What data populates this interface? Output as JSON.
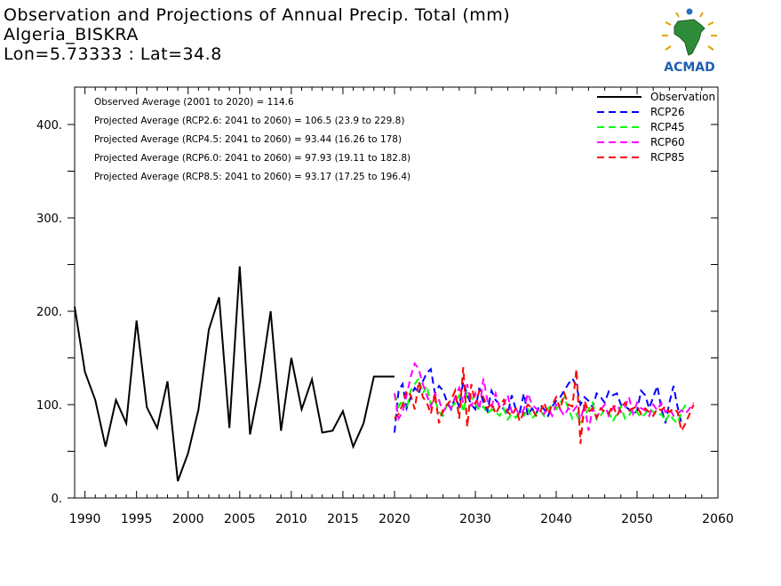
{
  "header": {
    "title_line1": "Observation and Projections of Annual Precip. Total (mm)",
    "title_line2": "Algeria_BISKRA",
    "title_line3": "Lon=5.73333 : Lat=34.8"
  },
  "logo": {
    "text": "ACMAD"
  },
  "chart_data": {
    "type": "line",
    "xlim": [
      1989,
      2060
    ],
    "ylim": [
      0,
      440
    ],
    "x_ticks": [
      1990,
      1995,
      2000,
      2005,
      2010,
      2015,
      2020,
      2030,
      2040,
      2050,
      2060
    ],
    "y_ticks": [
      0,
      100,
      200,
      300,
      400
    ],
    "y_tick_labels": [
      "0.",
      "100.",
      "200.",
      "300.",
      "400."
    ],
    "grid": false,
    "legend_position": "top-right",
    "annotations": [
      "Observed Average (2001 to 2020) = 114.6",
      "Projected Average (RCP2.6: 2041 to 2060) = 106.5 (23.9 to 229.8)",
      "Projected Average (RCP4.5: 2041 to 2060) = 93.44 (16.26 to 178)",
      "Projected Average (RCP6.0: 2041 to 2060) = 97.93 (19.11 to 182.8)",
      "Projected Average (RCP8.5: 2041 to 2060) = 93.17 (17.25 to 196.4)"
    ],
    "observation": {
      "name": "Observation",
      "color": "#000000",
      "x": [
        1989,
        1990,
        1991,
        1992,
        1993,
        1994,
        1995,
        1996,
        1997,
        1998,
        1999,
        2000,
        2001,
        2002,
        2003,
        2004,
        2005,
        2006,
        2007,
        2008,
        2009,
        2010,
        2011,
        2012,
        2013,
        2014,
        2015,
        2016,
        2017,
        2018,
        2019,
        2020
      ],
      "y": [
        205,
        135,
        105,
        55,
        105,
        80,
        190,
        97,
        75,
        125,
        18,
        48,
        95,
        180,
        215,
        75,
        248,
        68,
        125,
        200,
        72,
        150,
        95,
        127,
        70,
        72,
        93,
        55,
        80,
        130,
        130,
        130
      ]
    },
    "series": [
      {
        "name": "RCP26",
        "color": "#0000ff",
        "x_start": 2020,
        "x_step": 0.5,
        "values": [
          70,
          115,
          122,
          96,
          108,
          118,
          112,
          125,
          134,
          138,
          112,
          120,
          115,
          103,
          95,
          108,
          98,
          125,
          110,
          100,
          95,
          118,
          102,
          93,
          115,
          105,
          100,
          95,
          90,
          110,
          95,
          92,
          112,
          88,
          96,
          90,
          100,
          95,
          88,
          98,
          104,
          108,
          115,
          122,
          128,
          120,
          100,
          108,
          104,
          97,
          112,
          108,
          102,
          114,
          110,
          112,
          100,
          98,
          95,
          90,
          93,
          115,
          110,
          96,
          108,
          120,
          96,
          80,
          102,
          120,
          98,
          80
        ]
      },
      {
        "name": "RCP45",
        "color": "#00ff00",
        "x_start": 2020,
        "x_step": 0.5,
        "values": [
          112,
          98,
          105,
          95,
          115,
          122,
          128,
          112,
          120,
          100,
          105,
          92,
          88,
          100,
          96,
          102,
          110,
          92,
          115,
          108,
          100,
          94,
          98,
          90,
          95,
          92,
          88,
          96,
          84,
          90,
          86,
          92,
          88,
          96,
          85,
          90,
          94,
          88,
          96,
          100,
          95,
          102,
          108,
          96,
          85,
          90,
          80,
          88,
          95,
          102,
          84,
          88,
          95,
          92,
          82,
          90,
          98,
          85,
          88,
          96,
          92,
          86,
          90,
          96,
          92,
          88,
          90,
          82,
          90,
          84,
          80,
          92,
          100
        ]
      },
      {
        "name": "RCP60",
        "color": "#ff00ff",
        "x_start": 2020,
        "x_step": 0.5,
        "values": [
          112,
          85,
          92,
          110,
          130,
          144,
          138,
          122,
          110,
          98,
          112,
          105,
          92,
          100,
          96,
          108,
          118,
          102,
          122,
          98,
          112,
          95,
          128,
          104,
          98,
          112,
          96,
          100,
          110,
          92,
          96,
          88,
          95,
          112,
          100,
          96,
          92,
          90,
          96,
          88,
          100,
          95,
          88,
          96,
          92,
          98,
          84,
          100,
          72,
          96,
          86,
          94,
          100,
          88,
          96,
          100,
          92,
          98,
          108,
          90,
          102,
          96,
          94,
          88,
          100,
          94,
          102,
          92,
          96,
          88,
          90,
          94,
          90,
          96,
          102
        ]
      },
      {
        "name": "RCP85",
        "color": "#ff0000",
        "x_start": 2020,
        "x_step": 0.5,
        "values": [
          85,
          90,
          100,
          115,
          110,
          95,
          125,
          108,
          102,
          90,
          112,
          80,
          95,
          100,
          105,
          115,
          85,
          140,
          76,
          122,
          100,
          115,
          108,
          96,
          102,
          90,
          98,
          105,
          92,
          88,
          96,
          82,
          92,
          100,
          96,
          88,
          92,
          102,
          90,
          100,
          108,
          95,
          112,
          100,
          98,
          138,
          58,
          104,
          92,
          96,
          86,
          96,
          92,
          90,
          100,
          88,
          96,
          102,
          94,
          96,
          98,
          90,
          96,
          92,
          88,
          96,
          94,
          98,
          92,
          96,
          92,
          72,
          80,
          90,
          100
        ]
      }
    ]
  }
}
